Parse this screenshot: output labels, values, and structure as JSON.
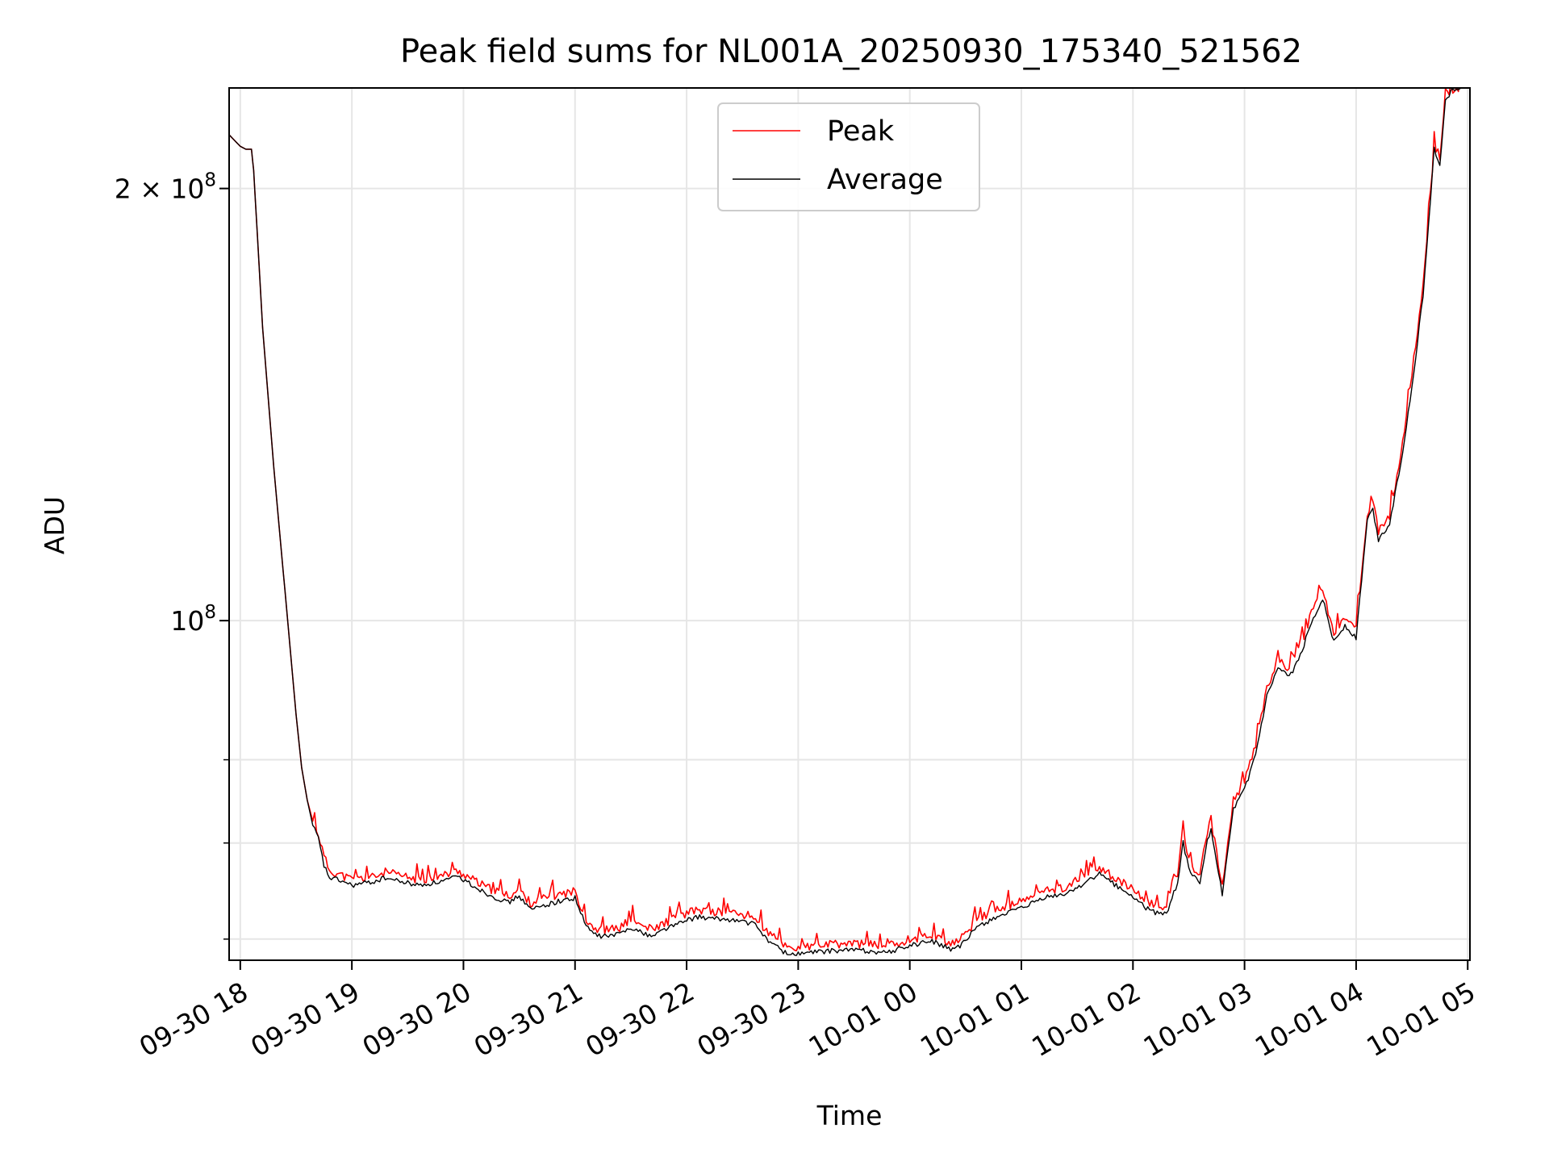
{
  "chart_data": {
    "type": "line",
    "title": "Peak field sums for NL001A_20250930_175340_521562",
    "xlabel": "Time",
    "ylabel": "ADU",
    "xlim": [
      -0.1,
      11.02
    ],
    "ylim": [
      58000000,
      235000000
    ],
    "yscale": "log",
    "grid": true,
    "legend_position": "top-center",
    "x_unit": "hours since 09-30 18:00",
    "x_ticks": [
      {
        "value": 0,
        "label": "09-30 18"
      },
      {
        "value": 1,
        "label": "09-30 19"
      },
      {
        "value": 2,
        "label": "09-30 20"
      },
      {
        "value": 3,
        "label": "09-30 21"
      },
      {
        "value": 4,
        "label": "09-30 22"
      },
      {
        "value": 5,
        "label": "09-30 23"
      },
      {
        "value": 6,
        "label": "10-01 00"
      },
      {
        "value": 7,
        "label": "10-01 01"
      },
      {
        "value": 8,
        "label": "10-01 02"
      },
      {
        "value": 9,
        "label": "10-01 03"
      },
      {
        "value": 10,
        "label": "10-01 04"
      },
      {
        "value": 11,
        "label": "10-01 05"
      }
    ],
    "y_major_ticks": [
      {
        "value": 100000000,
        "mantissa": "10",
        "exp": "8"
      },
      {
        "value": 200000000,
        "mantissa": "2 × 10",
        "exp": "8"
      }
    ],
    "y_minor_ticks": [
      60000000,
      70000000,
      80000000
    ],
    "series": [
      {
        "name": "Peak",
        "color": "#ff0000",
        "x": [
          -0.1,
          0.0,
          0.05,
          0.1,
          0.12,
          0.2,
          0.3,
          0.4,
          0.5,
          0.55,
          0.6,
          0.65,
          0.7,
          0.75,
          0.8,
          0.9,
          1.0,
          1.2,
          1.3,
          1.4,
          1.6,
          1.8,
          1.95,
          2.0,
          2.2,
          2.4,
          2.5,
          2.6,
          2.8,
          3.0,
          3.1,
          3.2,
          3.3,
          3.4,
          3.5,
          3.6,
          3.7,
          3.8,
          4.0,
          4.1,
          4.2,
          4.4,
          4.6,
          4.75,
          4.9,
          5.0,
          5.2,
          5.5,
          5.8,
          6.0,
          6.2,
          6.4,
          6.5,
          6.6,
          6.8,
          7.0,
          7.2,
          7.4,
          7.6,
          7.7,
          7.8,
          8.0,
          8.1,
          8.2,
          8.3,
          8.4,
          8.45,
          8.5,
          8.6,
          8.65,
          8.7,
          8.75,
          8.8,
          8.9,
          9.0,
          9.1,
          9.2,
          9.3,
          9.4,
          9.5,
          9.6,
          9.7,
          9.8,
          9.9,
          10.0,
          10.1,
          10.15,
          10.2,
          10.3,
          10.4,
          10.5,
          10.6,
          10.7,
          10.75,
          10.8,
          10.85,
          10.9,
          10.95
        ],
        "values": [
          218000000,
          214000000,
          213000000,
          213000000,
          206000000,
          160000000,
          128000000,
          105000000,
          86000000,
          79000000,
          75000000,
          72500000,
          71000000,
          68500000,
          67000000,
          66500000,
          66000000,
          66300000,
          66800000,
          66500000,
          66000000,
          66400000,
          66900000,
          66600000,
          65200000,
          64300000,
          64900000,
          63600000,
          64300000,
          64800000,
          61900000,
          60900000,
          60900000,
          61100000,
          61900000,
          61300000,
          60900000,
          61600000,
          62500000,
          62900000,
          62700000,
          62600000,
          62200000,
          60400000,
          59300000,
          59100000,
          59400000,
          59600000,
          59300000,
          60000000,
          60400000,
          59500000,
          60400000,
          61900000,
          63000000,
          63700000,
          64800000,
          65200000,
          66700000,
          67300000,
          66500000,
          64900000,
          63900000,
          63300000,
          63200000,
          66500000,
          71000000,
          68000000,
          66200000,
          70200000,
          72700000,
          68800000,
          65300000,
          74900000,
          77300000,
          81800000,
          89800000,
          93900000,
          92600000,
          95800000,
          101200000,
          105100000,
          98000000,
          100600000,
          98600000,
          119000000,
          121000000,
          115300000,
          118300000,
          130400000,
          147400000,
          170400000,
          215000000,
          210000000,
          231500000,
          234000000,
          235000000,
          235000000
        ]
      },
      {
        "name": "Average",
        "color": "#000000",
        "x": [
          -0.1,
          0.0,
          0.05,
          0.1,
          0.12,
          0.2,
          0.3,
          0.4,
          0.5,
          0.55,
          0.6,
          0.65,
          0.7,
          0.75,
          0.8,
          0.9,
          1.0,
          1.2,
          1.3,
          1.4,
          1.6,
          1.8,
          1.95,
          2.0,
          2.2,
          2.4,
          2.5,
          2.6,
          2.8,
          3.0,
          3.1,
          3.2,
          3.3,
          3.4,
          3.5,
          3.6,
          3.7,
          3.8,
          4.0,
          4.1,
          4.2,
          4.4,
          4.6,
          4.75,
          4.9,
          5.0,
          5.2,
          5.5,
          5.8,
          6.0,
          6.2,
          6.4,
          6.5,
          6.6,
          6.8,
          7.0,
          7.2,
          7.4,
          7.6,
          7.7,
          7.8,
          8.0,
          8.1,
          8.2,
          8.3,
          8.4,
          8.45,
          8.5,
          8.6,
          8.65,
          8.7,
          8.75,
          8.8,
          8.9,
          9.0,
          9.1,
          9.2,
          9.3,
          9.4,
          9.5,
          9.6,
          9.7,
          9.8,
          9.9,
          10.0,
          10.1,
          10.15,
          10.2,
          10.3,
          10.4,
          10.5,
          10.6,
          10.7,
          10.75,
          10.8,
          10.85,
          10.9,
          10.95
        ],
        "values": [
          218000000,
          214000000,
          213000000,
          213000000,
          206000000,
          160000000,
          128000000,
          105000000,
          86000000,
          79000000,
          75000000,
          72000000,
          70500000,
          67500000,
          66200000,
          65900000,
          65400000,
          65800000,
          66200000,
          65900000,
          65400000,
          65800000,
          66300000,
          66000000,
          64600000,
          63600000,
          64300000,
          62900000,
          63600000,
          64100000,
          61200000,
          60300000,
          60300000,
          60500000,
          61200000,
          60600000,
          60300000,
          61000000,
          61800000,
          62200000,
          62000000,
          61900000,
          61500000,
          59700000,
          58600000,
          58600000,
          58800000,
          59000000,
          58700000,
          59400000,
          59800000,
          58900000,
          59800000,
          61200000,
          62300000,
          63000000,
          64100000,
          64500000,
          65900000,
          66600000,
          65800000,
          64200000,
          63200000,
          62600000,
          62500000,
          65700000,
          70000000,
          67200000,
          65400000,
          69300000,
          71800000,
          67900000,
          64500000,
          73800000,
          76200000,
          80700000,
          88500000,
          92600000,
          91300000,
          94500000,
          99800000,
          103700000,
          96700000,
          99200000,
          97200000,
          117500000,
          119500000,
          113800000,
          116800000,
          128700000,
          145500000,
          168400000,
          213000000,
          208000000,
          230000000,
          233500000,
          235000000,
          235000000
        ]
      }
    ]
  }
}
